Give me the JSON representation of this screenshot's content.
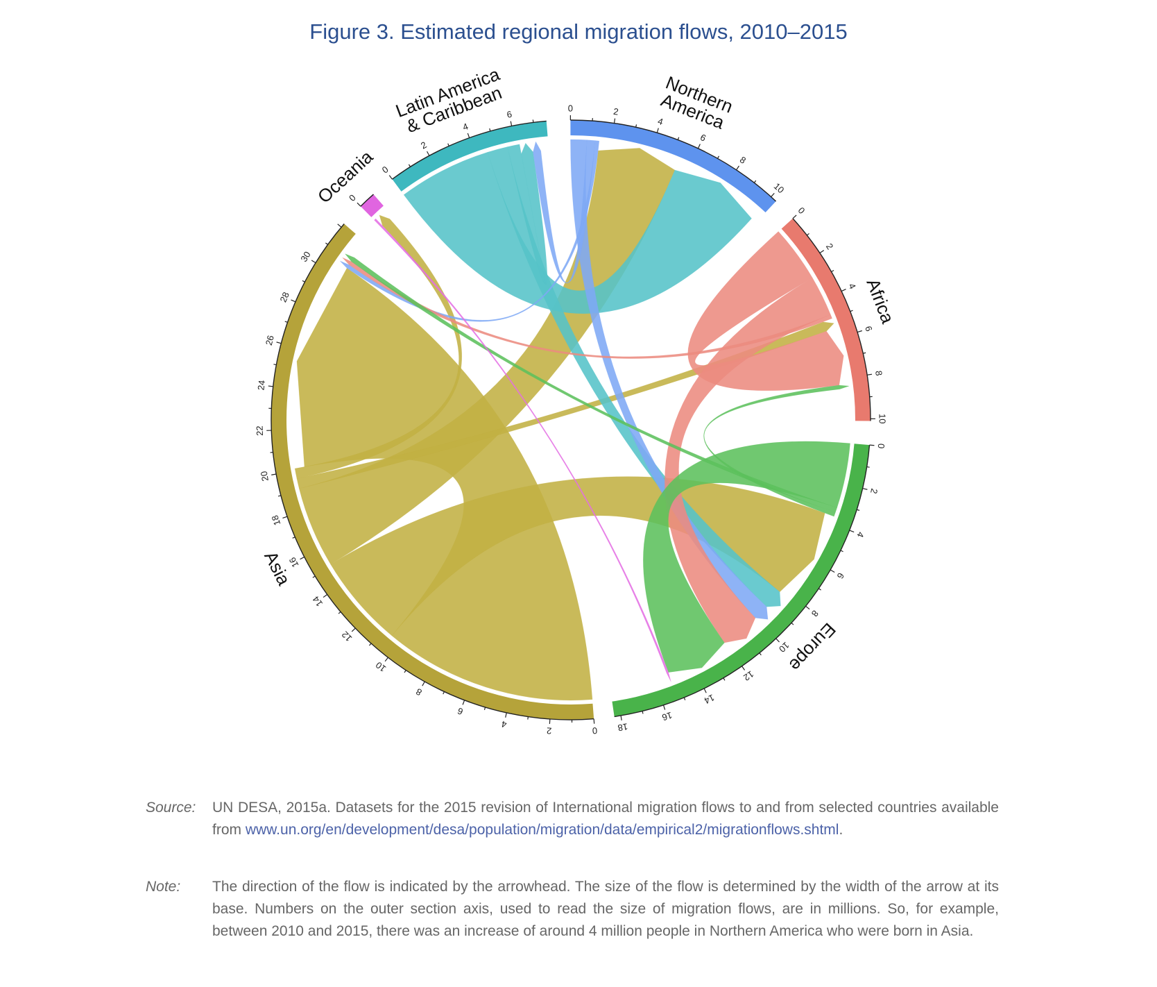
{
  "title": "Figure 3. Estimated regional migration flows, 2010–2015",
  "chart_data": {
    "type": "chord",
    "title": "Figure 3. Estimated regional migration flows, 2010–2015",
    "units": "millions",
    "sectors": [
      {
        "name": "Asia",
        "label_lines": [
          "Asia"
        ],
        "color": "#b5a33a",
        "ribbon_color": "#c2b043",
        "total": 32.2,
        "ticks": [
          0,
          2,
          4,
          6,
          8,
          10,
          12,
          14,
          16,
          18,
          20,
          22,
          24,
          26,
          28,
          30
        ]
      },
      {
        "name": "Oceania",
        "label_lines": [
          "Oceania"
        ],
        "color": "#e065e0",
        "ribbon_color": "#e46ee4",
        "total": 0.8,
        "ticks": [
          0
        ]
      },
      {
        "name": "Latin America & Caribbean",
        "label_lines": [
          "Latin America",
          "& Caribbean"
        ],
        "color": "#3eb8bf",
        "ribbon_color": "#55c3c8",
        "total": 7.6,
        "ticks": [
          0,
          2,
          4,
          6
        ]
      },
      {
        "name": "Northern America",
        "label_lines": [
          "Northern",
          "America"
        ],
        "color": "#5e93ee",
        "ribbon_color": "#7ea8f5",
        "total": 10.3,
        "ticks": [
          0,
          2,
          4,
          6,
          8,
          10
        ]
      },
      {
        "name": "Africa",
        "label_lines": [
          "Africa"
        ],
        "color": "#e87a6e",
        "ribbon_color": "#ec8b80",
        "total": 10.1,
        "ticks": [
          0,
          2,
          4,
          6,
          8,
          10
        ]
      },
      {
        "name": "Europe",
        "label_lines": [
          "Europe"
        ],
        "color": "#49b34a",
        "ribbon_color": "#5cc05c",
        "total": 18.3,
        "ticks": [
          0,
          2,
          4,
          6,
          8,
          10,
          12,
          14,
          16,
          18
        ]
      }
    ],
    "flows": [
      {
        "from": "Asia",
        "to": "Asia",
        "value": 10.5
      },
      {
        "from": "Asia",
        "to": "Europe",
        "value": 4.6
      },
      {
        "from": "Asia",
        "to": "Northern America",
        "value": 4.0
      },
      {
        "from": "Asia",
        "to": "Africa",
        "value": 0.5
      },
      {
        "from": "Asia",
        "to": "Oceania",
        "value": 0.5
      },
      {
        "from": "Latin America & Caribbean",
        "to": "Northern America",
        "value": 4.6
      },
      {
        "from": "Latin America & Caribbean",
        "to": "Europe",
        "value": 1.0
      },
      {
        "from": "Latin America & Caribbean",
        "to": "Latin America & Caribbean",
        "value": 0.6
      },
      {
        "from": "Northern America",
        "to": "Europe",
        "value": 0.8
      },
      {
        "from": "Northern America",
        "to": "Latin America & Caribbean",
        "value": 0.4
      },
      {
        "from": "Northern America",
        "to": "Asia",
        "value": 0.2
      },
      {
        "from": "Africa",
        "to": "Africa",
        "value": 2.8
      },
      {
        "from": "Africa",
        "to": "Europe",
        "value": 2.0
      },
      {
        "from": "Africa",
        "to": "Asia",
        "value": 0.2
      },
      {
        "from": "Europe",
        "to": "Europe",
        "value": 3.2
      },
      {
        "from": "Europe",
        "to": "Asia",
        "value": 0.25
      },
      {
        "from": "Europe",
        "to": "Africa",
        "value": 0.2
      },
      {
        "from": "Oceania",
        "to": "Europe",
        "value": 0.1
      }
    ]
  },
  "source": {
    "label": "Source:",
    "text": "UN DESA, 2015a. Datasets for the 2015 revision of International migration flows to and from selected countries available from ",
    "link": "www.un.org/en/development/desa/population/migration/data/empirical2/migrationflows.shtml",
    "end": "."
  },
  "note": {
    "label": "Note:",
    "text": "The direction of the flow is indicated by the arrowhead. The size of the flow is determined by the width of the arrow at its base. Numbers on the outer section axis, used to read the size of migration flows, are in millions. So, for example, between 2010 and 2015, there was an increase of around 4 million people in Northern America who were born in Asia."
  }
}
